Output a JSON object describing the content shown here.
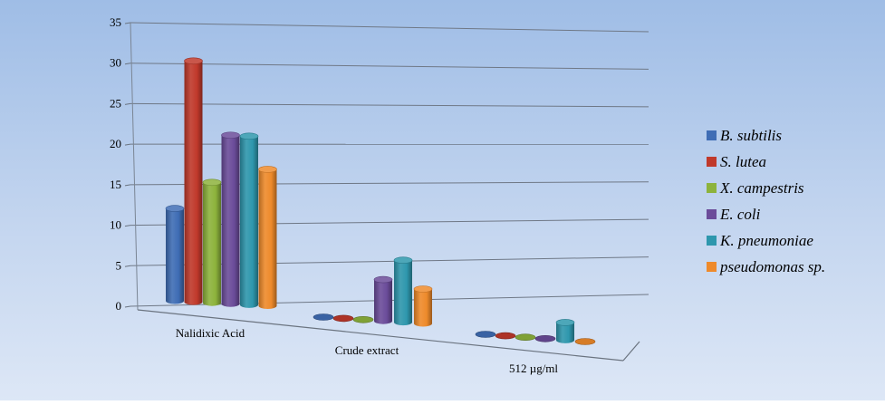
{
  "chart_data": {
    "type": "bar",
    "style": "3d-cylinder",
    "categories": [
      "Nalidixic Acid",
      "Crude extract",
      "512 µg/ml"
    ],
    "series": [
      {
        "name": "B. subtilis",
        "color": "#3f6db5",
        "values": [
          11.5,
          0,
          0
        ]
      },
      {
        "name": "S. lutea",
        "color": "#c0392b",
        "values": [
          30,
          0,
          0
        ]
      },
      {
        "name": "X. campestris",
        "color": "#8db33c",
        "values": [
          15,
          0,
          0
        ]
      },
      {
        "name": "E. coli",
        "color": "#6b4c9a",
        "values": [
          21,
          6,
          0
        ]
      },
      {
        "name": "K. pneumoniae",
        "color": "#2e97ad",
        "values": [
          21,
          9,
          3
        ]
      },
      {
        "name": "pseudomonas sp.",
        "color": "#ee8a2b",
        "values": [
          17,
          5,
          0
        ]
      }
    ],
    "yticks": [
      "0",
      "5",
      "10",
      "15",
      "20",
      "25",
      "30",
      "35"
    ],
    "ylim": [
      0,
      35
    ],
    "grid": true,
    "legend_position": "right"
  }
}
